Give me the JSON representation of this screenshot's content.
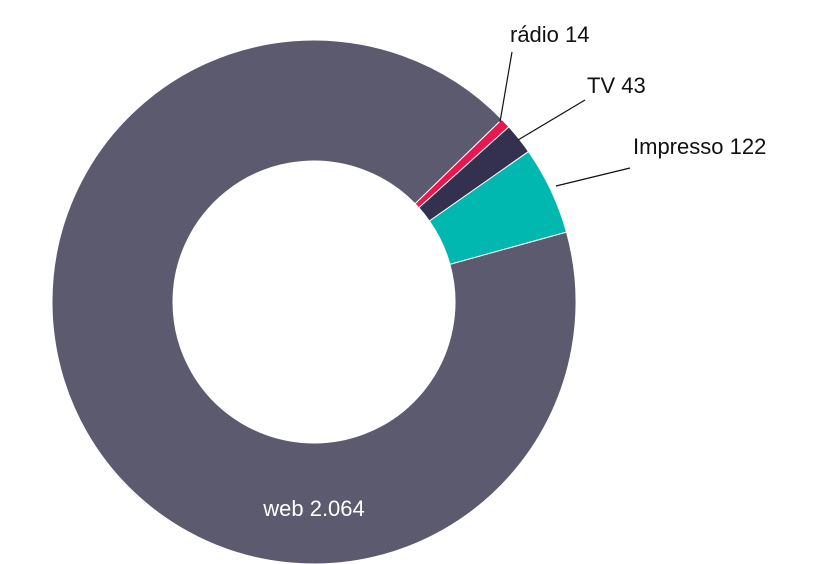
{
  "chart_data": {
    "type": "donut",
    "categories": [
      "rádio",
      "TV",
      "Impresso",
      "web"
    ],
    "values": [
      14,
      43,
      122,
      2064
    ],
    "value_labels": [
      "14",
      "43",
      "122",
      "2.064"
    ],
    "colors": [
      "#e8174f",
      "#33314f",
      "#00b8b0",
      "#5c5a6e"
    ]
  }
}
